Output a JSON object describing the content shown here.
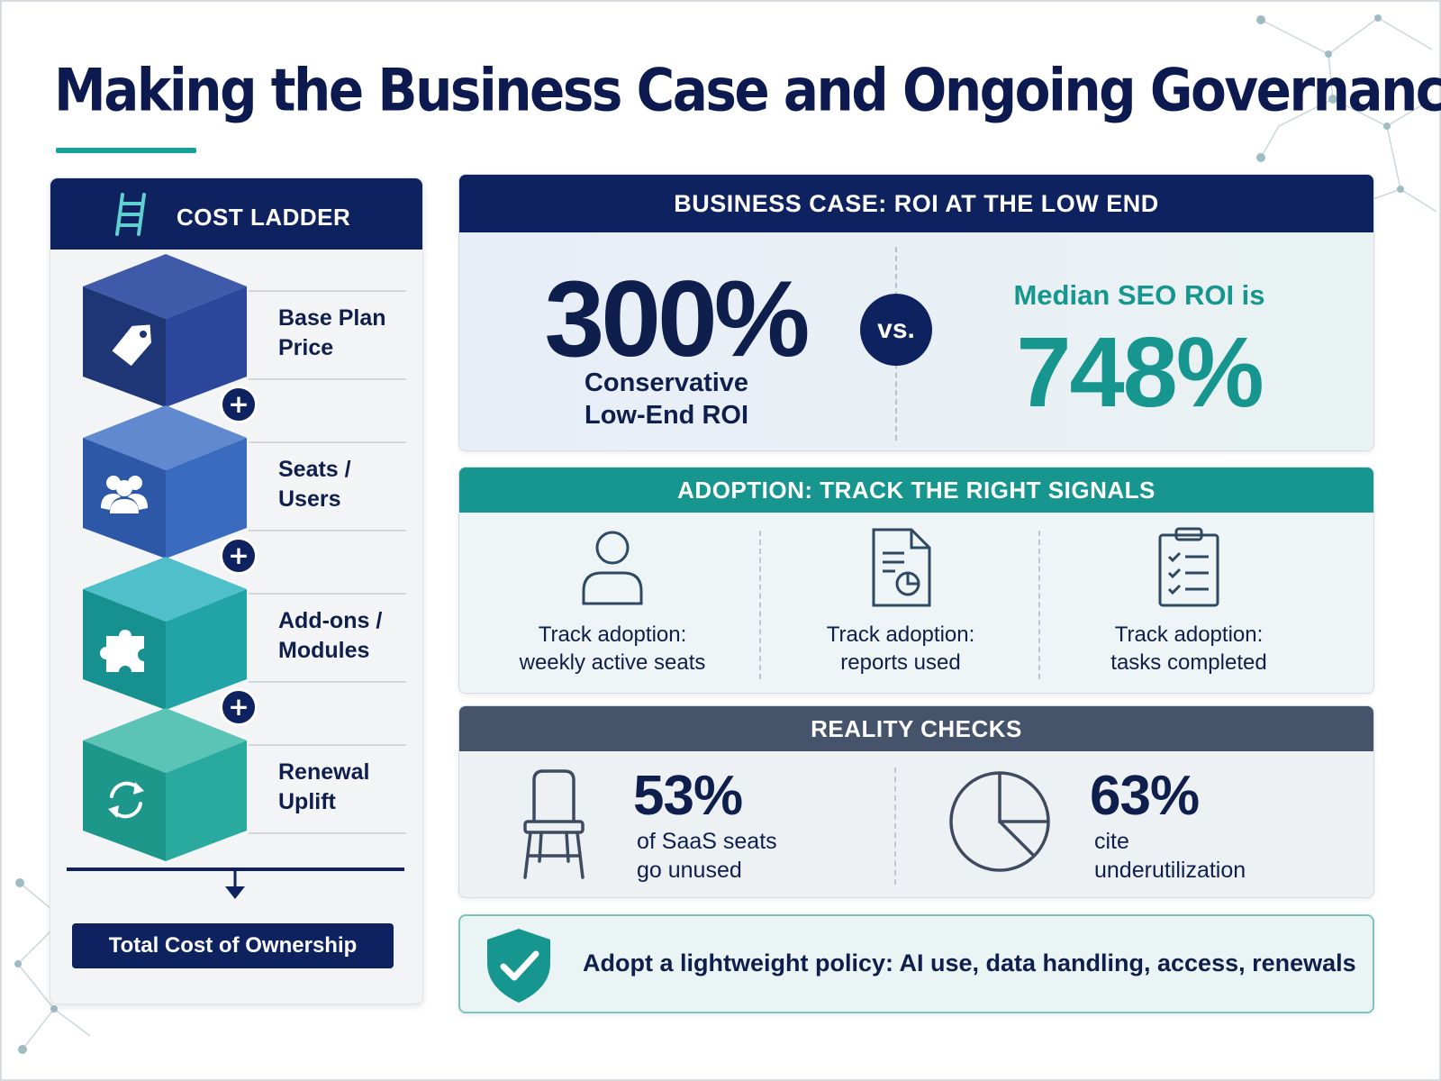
{
  "title": "Making the Business Case and Ongoing Governance",
  "colors": {
    "navy": "#0f2260",
    "teal": "#17958f",
    "slate": "#45536b",
    "accent_underline": "#17a09a"
  },
  "cost_ladder": {
    "heading": "COST LADDER",
    "heading_icon": "ladder-icon",
    "steps": [
      {
        "label": "Base Plan Price",
        "icon": "price-tag-icon"
      },
      {
        "label": "Seats / Users",
        "icon": "users-icon"
      },
      {
        "label": "Add-ons / Modules",
        "icon": "puzzle-piece-icon"
      },
      {
        "label": "Renewal Uplift",
        "icon": "renew-cycle-icon"
      }
    ],
    "plus_symbol": "+",
    "total": "Total Cost of Ownership"
  },
  "business_case": {
    "heading": "BUSINESS CASE: ROI AT THE LOW END",
    "low_roi_value": "300%",
    "low_roi_label_line1": "Conservative",
    "low_roi_label_line2": "Low-End ROI",
    "vs": "vs.",
    "median_label": "Median SEO ROI is",
    "median_value": "748%"
  },
  "adoption": {
    "heading": "ADOPTION: TRACK THE RIGHT SIGNALS",
    "items": [
      {
        "line1": "Track adoption:",
        "line2": "weekly active seats",
        "icon": "user-icon"
      },
      {
        "line1": "Track adoption:",
        "line2": "reports used",
        "icon": "report-document-icon"
      },
      {
        "line1": "Track adoption:",
        "line2": "tasks completed",
        "icon": "checklist-clipboard-icon"
      }
    ]
  },
  "reality": {
    "heading": "REALITY CHECKS",
    "stats": [
      {
        "value": "53%",
        "line1": "of SaaS seats",
        "line2": "go unused",
        "icon": "chair-icon"
      },
      {
        "value": "63%",
        "line1": "cite",
        "line2": "underutilization",
        "icon": "pie-chart-icon"
      }
    ]
  },
  "policy": {
    "icon": "shield-check-icon",
    "text": "Adopt a lightweight policy: AI use, data handling, access, renewals"
  }
}
